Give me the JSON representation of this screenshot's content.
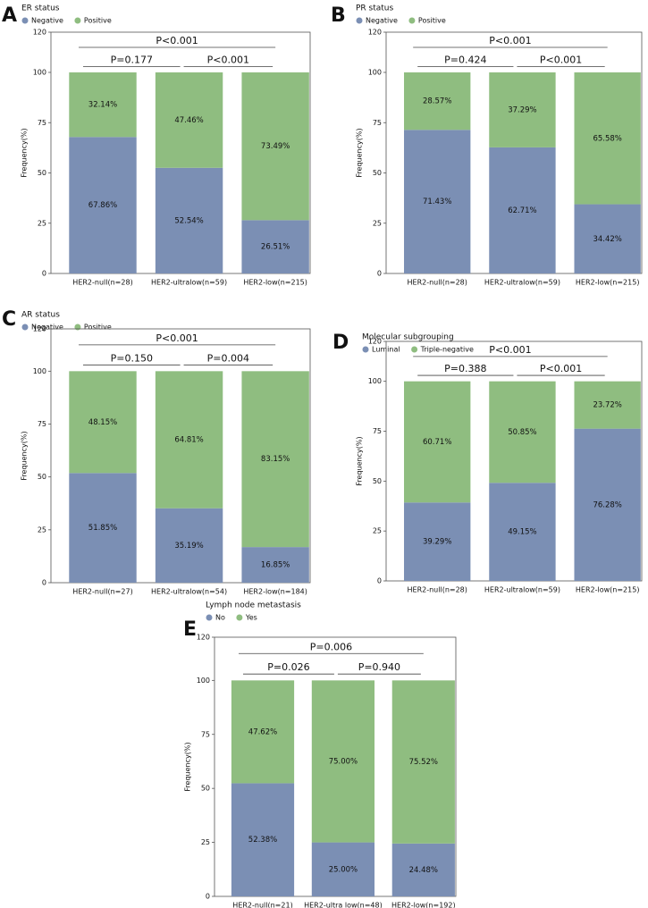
{
  "chart_data": [
    {
      "type": "bar",
      "stacked": true,
      "panel": "A",
      "title": "ER status",
      "y_label": "Frequency(%)",
      "categories": [
        "HER2-null(n=28)",
        "HER2-ultralow(n=59)",
        "HER2-low(n=215)"
      ],
      "series": [
        {
          "name": "Negative",
          "color": "#7b8fb4",
          "values": [
            67.86,
            52.54,
            26.51
          ],
          "value_labels": [
            "67.86%",
            "52.54%",
            "26.51%"
          ]
        },
        {
          "name": "Positive",
          "color": "#8fbd80",
          "values": [
            32.14,
            47.46,
            73.49
          ],
          "value_labels": [
            "32.14%",
            "47.46%",
            "73.49%"
          ]
        }
      ],
      "annotations": [
        "P<0.001",
        "P=0.177",
        "P<0.001"
      ],
      "ylim": [
        0,
        120
      ],
      "yticks": [
        0,
        25,
        50,
        75,
        100,
        120
      ]
    },
    {
      "type": "bar",
      "stacked": true,
      "panel": "B",
      "title": "PR status",
      "y_label": "Frequency(%)",
      "categories": [
        "HER2-null(n=28)",
        "HER2-ultralow(n=59)",
        "HER2-low(n=215)"
      ],
      "series": [
        {
          "name": "Negative",
          "color": "#7b8fb4",
          "values": [
            71.43,
            62.71,
            34.42
          ],
          "value_labels": [
            "71.43%",
            "62.71%",
            "34.42%"
          ]
        },
        {
          "name": "Positive",
          "color": "#8fbd80",
          "values": [
            28.57,
            37.29,
            65.58
          ],
          "value_labels": [
            "28.57%",
            "37.29%",
            "65.58%"
          ]
        }
      ],
      "annotations": [
        "P<0.001",
        "P=0.424",
        "P<0.001"
      ],
      "ylim": [
        0,
        120
      ],
      "yticks": [
        0,
        25,
        50,
        75,
        100,
        120
      ]
    },
    {
      "type": "bar",
      "stacked": true,
      "panel": "C",
      "title": "AR status",
      "y_label": "Frequency(%)",
      "categories": [
        "HER2-null(n=27)",
        "HER2-ultralow(n=54)",
        "HER2-low(n=184)"
      ],
      "series": [
        {
          "name": "Negative",
          "color": "#7b8fb4",
          "values": [
            51.85,
            35.19,
            16.85
          ],
          "value_labels": [
            "51.85%",
            "35.19%",
            "16.85%"
          ]
        },
        {
          "name": "Positive",
          "color": "#8fbd80",
          "values": [
            48.15,
            64.81,
            83.15
          ],
          "value_labels": [
            "48.15%",
            "64.81%",
            "83.15%"
          ]
        }
      ],
      "annotations": [
        "P<0.001",
        "P=0.150",
        "P=0.004"
      ],
      "ylim": [
        0,
        120
      ],
      "yticks": [
        0,
        25,
        50,
        75,
        100,
        120
      ]
    },
    {
      "type": "bar",
      "stacked": true,
      "panel": "D",
      "title": "Molecular subgrouping",
      "y_label": "Frequency(%)",
      "categories": [
        "HER2-null(n=28)",
        "HER2-ultralow(n=59)",
        "HER2-low(n=215)"
      ],
      "series": [
        {
          "name": "Luminal",
          "color": "#7b8fb4",
          "values": [
            39.29,
            49.15,
            76.28
          ],
          "value_labels": [
            "39.29%",
            "49.15%",
            "76.28%"
          ]
        },
        {
          "name": "Triple-negative",
          "color": "#8fbd80",
          "values": [
            60.71,
            50.85,
            23.72
          ],
          "value_labels": [
            "60.71%",
            "50.85%",
            "23.72%"
          ]
        }
      ],
      "annotations": [
        "P<0.001",
        "P=0.388",
        "P<0.001"
      ],
      "ylim": [
        0,
        120
      ],
      "yticks": [
        0,
        25,
        50,
        75,
        100,
        120
      ]
    },
    {
      "type": "bar",
      "stacked": true,
      "panel": "E",
      "title": "Lymph node metastasis",
      "y_label": "Frequency(%)",
      "categories": [
        "HER2-null(n=21)",
        "HER2-ultra low(n=48)",
        "HER2-low(n=192)"
      ],
      "series": [
        {
          "name": "No",
          "color": "#7b8fb4",
          "values": [
            52.38,
            25.0,
            24.48
          ],
          "value_labels": [
            "52.38%",
            "25.00%",
            "24.48%"
          ]
        },
        {
          "name": "Yes",
          "color": "#8fbd80",
          "values": [
            47.62,
            75.0,
            75.52
          ],
          "value_labels": [
            "47.62%",
            "75.00%",
            "75.52%"
          ]
        }
      ],
      "annotations": [
        "P=0.006",
        "P=0.026",
        "P=0.940"
      ],
      "ylim": [
        0,
        120
      ],
      "yticks": [
        0,
        25,
        50,
        75,
        100,
        120
      ]
    }
  ]
}
